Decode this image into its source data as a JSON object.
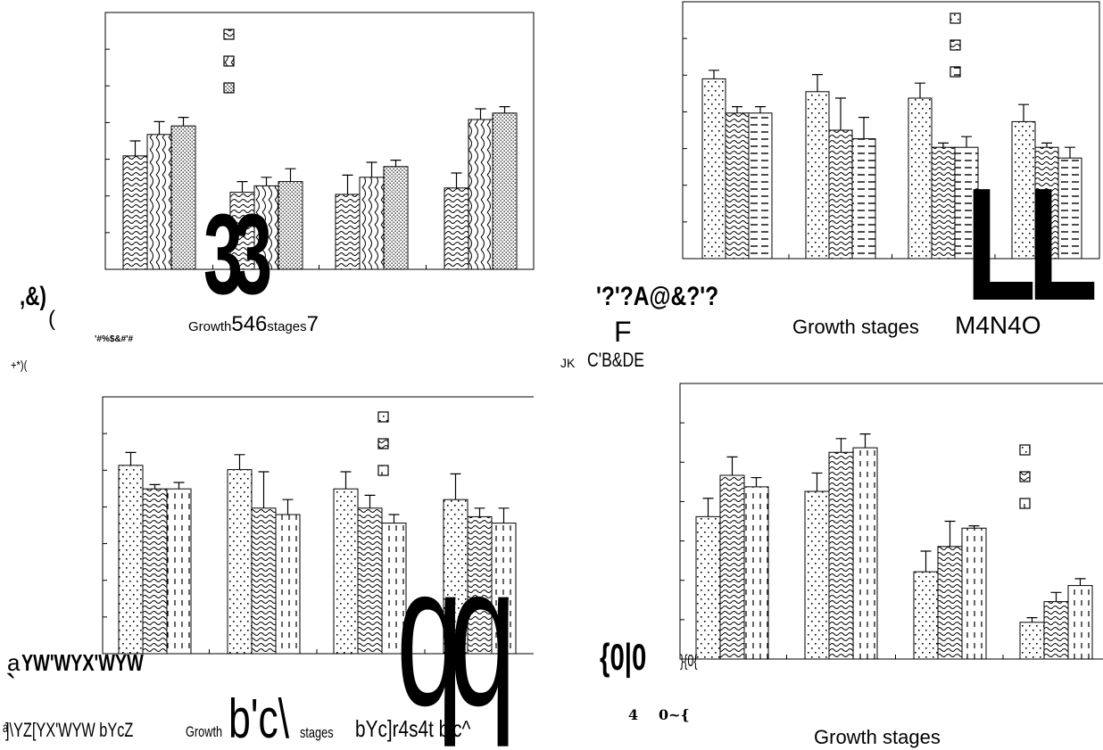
{
  "patterns": [
    "dots",
    "wave",
    "dense-dots",
    "dashes",
    "vdash",
    "diag"
  ],
  "chart_data": [
    {
      "type": "bar",
      "ylim": [
        0,
        6
      ],
      "categories": [
        "",
        "",
        "",
        ""
      ],
      "series": [
        {
          "pattern": "wave",
          "values": [
            2.65,
            1.8,
            1.75,
            1.9
          ],
          "errors": [
            0.35,
            0.25,
            0.45,
            0.35
          ]
        },
        {
          "pattern": "diag",
          "values": [
            3.15,
            1.95,
            2.15,
            3.5
          ],
          "errors": [
            0.3,
            0.2,
            0.35,
            0.25
          ]
        },
        {
          "pattern": "dense-dots",
          "values": [
            3.35,
            2.05,
            2.4,
            3.65
          ],
          "errors": [
            0.2,
            0.3,
            0.15,
            0.15
          ]
        }
      ],
      "xlabel": "Growth546stages7",
      "legend": "top-left",
      "grid": false
    },
    {
      "type": "bar",
      "ylim": [
        0,
        6
      ],
      "categories": [
        "",
        "",
        "",
        ""
      ],
      "series": [
        {
          "pattern": "dots",
          "values": [
            4.2,
            3.9,
            3.75,
            3.2
          ],
          "errors": [
            0.2,
            0.4,
            0.35,
            0.4
          ]
        },
        {
          "pattern": "wave",
          "values": [
            3.4,
            3.0,
            2.6,
            2.6
          ],
          "errors": [
            0.15,
            0.75,
            0.1,
            0.1
          ]
        },
        {
          "pattern": "dashes",
          "values": [
            3.4,
            2.8,
            2.6,
            2.35
          ],
          "errors": [
            0.15,
            0.5,
            0.25,
            0.25
          ]
        }
      ],
      "xlabel": "Growth stages",
      "legend": "top-center",
      "grid": false
    },
    {
      "type": "bar",
      "ylim": [
        0,
        6
      ],
      "categories": [
        "",
        "",
        "",
        ""
      ],
      "series": [
        {
          "pattern": "dots",
          "values": [
            4.4,
            4.3,
            3.85,
            3.6
          ],
          "errors": [
            0.3,
            0.35,
            0.4,
            0.6
          ]
        },
        {
          "pattern": "wave",
          "values": [
            3.85,
            3.4,
            3.4,
            3.2
          ],
          "errors": [
            0.1,
            0.85,
            0.3,
            0.2
          ]
        },
        {
          "pattern": "vdash",
          "values": [
            3.85,
            3.25,
            3.05,
            3.05
          ],
          "errors": [
            0.15,
            0.35,
            0.2,
            0.35
          ]
        }
      ],
      "xlabel": "Growth",
      "legend": "top-right",
      "grid": false
    },
    {
      "type": "bar",
      "ylim": [
        0,
        6
      ],
      "categories": [
        "",
        "",
        "",
        ""
      ],
      "series": [
        {
          "pattern": "dots",
          "values": [
            3.1,
            3.65,
            1.9,
            0.8
          ],
          "errors": [
            0.4,
            0.4,
            0.45,
            0.1
          ]
        },
        {
          "pattern": "wave",
          "values": [
            4.0,
            4.5,
            2.45,
            1.25
          ],
          "errors": [
            0.4,
            0.3,
            0.55,
            0.2
          ]
        },
        {
          "pattern": "vdash",
          "values": [
            3.75,
            4.6,
            2.85,
            1.6
          ],
          "errors": [
            0.2,
            0.3,
            0.05,
            0.15
          ]
        }
      ],
      "xlabel": "Growth stages",
      "legend": "top-right",
      "grid": false
    }
  ],
  "labels": {
    "p1_thirty_three": "33",
    "p1_left_mark": ",&)",
    "p1_paren": "(",
    "p1_small": "'#%$&#'#",
    "p1_plus": "+*)(",
    "p1_growth": "Growth",
    "p1_nums": "546",
    "p1_stages": "stages",
    "p1_seven": "7",
    "p2_code": "'?'?A@&?'?",
    "p2_f": "F",
    "p2_jk": "JK",
    "p2_cb": "C'B&DE",
    "p2_growth": "Growth stages",
    "p2_m4n4o": "M4N4O",
    "p2_ll": "LL",
    "p3_a": "a",
    "p3_yw": "YW'WYX'WYW",
    "p3_backtick": "`",
    "p3_bottom_left": "ͣ]\\YZ[YX'WYW bYcZ",
    "p3_growth": "Growth",
    "p3_bc": "b'c\\",
    "p3_stages": "stages",
    "p3_tail": "bYc]r4s4t b'c^",
    "p3_qq": "qq",
    "p4_brace": "{0|0",
    "p4_small": "}{0{",
    "p4_four": "4",
    "p4_tilde": "0~{",
    "p4_growth": "Growth stages"
  }
}
